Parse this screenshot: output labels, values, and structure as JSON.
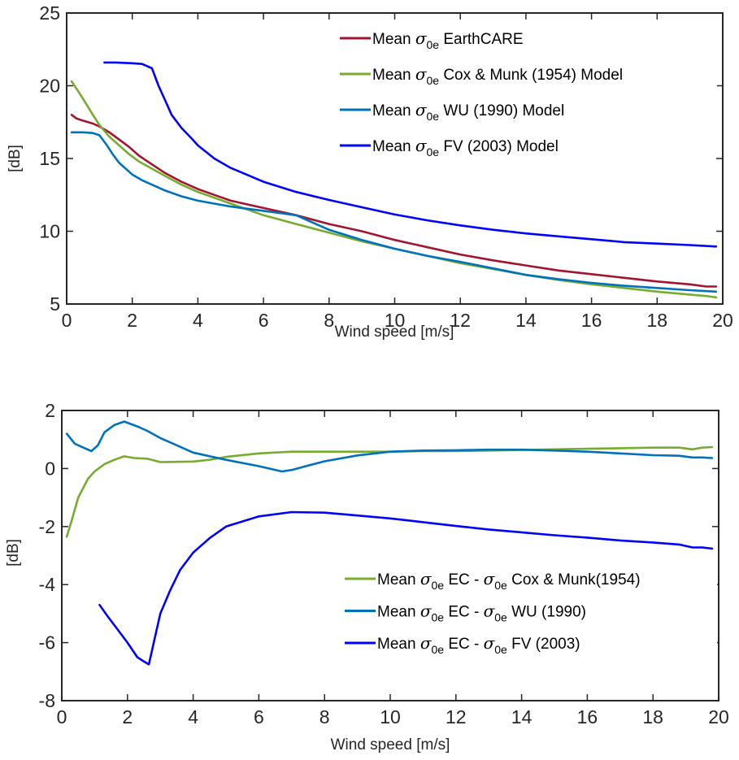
{
  "chart_data": [
    {
      "type": "line",
      "xlabel": "Wind speed [m/s]",
      "ylabel": "[dB]",
      "xlim": [
        0,
        20
      ],
      "ylim": [
        5,
        25
      ],
      "xticks": [
        "0",
        "2",
        "4",
        "6",
        "8",
        "10",
        "12",
        "14",
        "16",
        "18",
        "20"
      ],
      "yticks": [
        "5",
        "10",
        "15",
        "20",
        "25"
      ],
      "grid": false,
      "legend_position": "top-right",
      "series": [
        {
          "name_parts": [
            "Mean",
            "σ",
            "0e",
            "EarthCARE"
          ],
          "color": "#A2142F",
          "points": [
            [
              0.15,
              18.0
            ],
            [
              0.3,
              17.75
            ],
            [
              0.5,
              17.6
            ],
            [
              0.8,
              17.4
            ],
            [
              1.0,
              17.2
            ],
            [
              1.3,
              16.8
            ],
            [
              1.6,
              16.3
            ],
            [
              1.9,
              15.8
            ],
            [
              2.2,
              15.2
            ],
            [
              2.6,
              14.6
            ],
            [
              3.0,
              14.0
            ],
            [
              3.5,
              13.4
            ],
            [
              4.0,
              12.9
            ],
            [
              4.5,
              12.5
            ],
            [
              5.0,
              12.1
            ],
            [
              6.0,
              11.6
            ],
            [
              7.0,
              11.1
            ],
            [
              8.0,
              10.5
            ],
            [
              9.0,
              10.0
            ],
            [
              10.0,
              9.4
            ],
            [
              11.0,
              8.9
            ],
            [
              12.0,
              8.4
            ],
            [
              13.0,
              8.0
            ],
            [
              14.0,
              7.65
            ],
            [
              15.0,
              7.3
            ],
            [
              16.0,
              7.05
            ],
            [
              17.0,
              6.8
            ],
            [
              18.0,
              6.55
            ],
            [
              19.0,
              6.35
            ],
            [
              19.5,
              6.2
            ],
            [
              19.8,
              6.2
            ]
          ]
        },
        {
          "name_parts": [
            "Mean",
            "σ",
            "0e",
            "Cox & Munk (1954) Model"
          ],
          "color": "#77AC30",
          "points": [
            [
              0.15,
              20.3
            ],
            [
              0.3,
              19.8
            ],
            [
              0.5,
              19.1
            ],
            [
              0.8,
              18.0
            ],
            [
              1.0,
              17.3
            ],
            [
              1.3,
              16.5
            ],
            [
              1.6,
              15.9
            ],
            [
              1.9,
              15.3
            ],
            [
              2.2,
              14.8
            ],
            [
              2.6,
              14.3
            ],
            [
              3.0,
              13.8
            ],
            [
              3.5,
              13.2
            ],
            [
              4.0,
              12.7
            ],
            [
              4.5,
              12.3
            ],
            [
              5.0,
              11.9
            ],
            [
              6.0,
              11.1
            ],
            [
              7.0,
              10.5
            ],
            [
              8.0,
              9.9
            ],
            [
              9.0,
              9.3
            ],
            [
              10.0,
              8.8
            ],
            [
              11.0,
              8.3
            ],
            [
              12.0,
              7.8
            ],
            [
              13.0,
              7.4
            ],
            [
              14.0,
              7.0
            ],
            [
              15.0,
              6.65
            ],
            [
              16.0,
              6.35
            ],
            [
              17.0,
              6.1
            ],
            [
              18.0,
              5.85
            ],
            [
              19.0,
              5.65
            ],
            [
              19.5,
              5.55
            ],
            [
              19.8,
              5.45
            ]
          ]
        },
        {
          "name_parts": [
            "Mean",
            "σ",
            "0e",
            "WU (1990) Model"
          ],
          "color": "#0072BD",
          "points": [
            [
              0.15,
              16.8
            ],
            [
              0.5,
              16.8
            ],
            [
              0.8,
              16.75
            ],
            [
              1.0,
              16.6
            ],
            [
              1.2,
              16.0
            ],
            [
              1.4,
              15.3
            ],
            [
              1.6,
              14.7
            ],
            [
              1.8,
              14.3
            ],
            [
              2.0,
              13.9
            ],
            [
              2.3,
              13.5
            ],
            [
              2.6,
              13.2
            ],
            [
              3.0,
              12.8
            ],
            [
              3.5,
              12.4
            ],
            [
              4.0,
              12.1
            ],
            [
              4.5,
              11.9
            ],
            [
              5.0,
              11.7
            ],
            [
              6.0,
              11.4
            ],
            [
              6.5,
              11.25
            ],
            [
              7.0,
              11.1
            ],
            [
              7.5,
              10.6
            ],
            [
              8.0,
              10.1
            ],
            [
              9.0,
              9.4
            ],
            [
              10.0,
              8.8
            ],
            [
              11.0,
              8.3
            ],
            [
              12.0,
              7.9
            ],
            [
              13.0,
              7.45
            ],
            [
              14.0,
              7.0
            ],
            [
              15.0,
              6.7
            ],
            [
              16.0,
              6.45
            ],
            [
              17.0,
              6.25
            ],
            [
              18.0,
              6.1
            ],
            [
              19.0,
              5.95
            ],
            [
              19.8,
              5.85
            ]
          ]
        },
        {
          "name_parts": [
            "Mean",
            "σ",
            "0e",
            "FV (2003) Model"
          ],
          "color": "#0000FF",
          "points": [
            [
              1.15,
              21.6
            ],
            [
              1.5,
              21.6
            ],
            [
              2.0,
              21.55
            ],
            [
              2.3,
              21.5
            ],
            [
              2.6,
              21.2
            ],
            [
              2.8,
              20.0
            ],
            [
              3.0,
              19.0
            ],
            [
              3.2,
              18.0
            ],
            [
              3.5,
              17.1
            ],
            [
              3.8,
              16.4
            ],
            [
              4.0,
              15.9
            ],
            [
              4.5,
              15.0
            ],
            [
              5.0,
              14.35
            ],
            [
              6.0,
              13.4
            ],
            [
              7.0,
              12.7
            ],
            [
              8.0,
              12.15
            ],
            [
              9.0,
              11.65
            ],
            [
              10.0,
              11.15
            ],
            [
              11.0,
              10.75
            ],
            [
              12.0,
              10.4
            ],
            [
              13.0,
              10.1
            ],
            [
              14.0,
              9.85
            ],
            [
              15.0,
              9.65
            ],
            [
              16.0,
              9.45
            ],
            [
              17.0,
              9.25
            ],
            [
              18.0,
              9.15
            ],
            [
              19.0,
              9.05
            ],
            [
              19.8,
              8.95
            ]
          ]
        }
      ]
    },
    {
      "type": "line",
      "xlabel": "Wind speed [m/s]",
      "ylabel": "[dB]",
      "xlim": [
        0,
        20
      ],
      "ylim": [
        -8,
        2
      ],
      "xticks": [
        "0",
        "2",
        "4",
        "6",
        "8",
        "10",
        "12",
        "14",
        "16",
        "18",
        "20"
      ],
      "yticks": [
        "-8",
        "-6",
        "-4",
        "-2",
        "0",
        "2"
      ],
      "grid": false,
      "legend_position": "bottom-right",
      "series": [
        {
          "name_parts": [
            "Mean",
            "σ",
            "0e",
            "EC -",
            "σ",
            "0e",
            "Cox & Munk(1954)"
          ],
          "color": "#77AC30",
          "points": [
            [
              0.15,
              -2.35
            ],
            [
              0.3,
              -1.8
            ],
            [
              0.5,
              -1.0
            ],
            [
              0.8,
              -0.35
            ],
            [
              1.0,
              -0.1
            ],
            [
              1.3,
              0.15
            ],
            [
              1.6,
              0.3
            ],
            [
              1.9,
              0.42
            ],
            [
              2.2,
              0.36
            ],
            [
              2.6,
              0.34
            ],
            [
              3.0,
              0.22
            ],
            [
              3.5,
              0.23
            ],
            [
              4.0,
              0.24
            ],
            [
              4.5,
              0.3
            ],
            [
              5.0,
              0.4
            ],
            [
              6.0,
              0.52
            ],
            [
              7.0,
              0.58
            ],
            [
              8.0,
              0.58
            ],
            [
              9.0,
              0.58
            ],
            [
              10.0,
              0.58
            ],
            [
              11.0,
              0.6
            ],
            [
              12.0,
              0.6
            ],
            [
              13.0,
              0.62
            ],
            [
              14.0,
              0.64
            ],
            [
              15.0,
              0.66
            ],
            [
              16.0,
              0.68
            ],
            [
              17.0,
              0.7
            ],
            [
              18.0,
              0.72
            ],
            [
              18.8,
              0.72
            ],
            [
              19.2,
              0.66
            ],
            [
              19.5,
              0.72
            ],
            [
              19.8,
              0.74
            ]
          ]
        },
        {
          "name_parts": [
            "Mean",
            "σ",
            "0e",
            "EC -",
            "σ",
            "0e",
            "WU (1990)"
          ],
          "color": "#0072BD",
          "points": [
            [
              0.15,
              1.2
            ],
            [
              0.4,
              0.85
            ],
            [
              0.7,
              0.7
            ],
            [
              0.9,
              0.6
            ],
            [
              1.1,
              0.8
            ],
            [
              1.3,
              1.25
            ],
            [
              1.6,
              1.5
            ],
            [
              1.9,
              1.62
            ],
            [
              2.3,
              1.45
            ],
            [
              2.6,
              1.3
            ],
            [
              3.0,
              1.05
            ],
            [
              3.5,
              0.8
            ],
            [
              4.0,
              0.55
            ],
            [
              5.0,
              0.3
            ],
            [
              6.0,
              0.08
            ],
            [
              6.7,
              -0.1
            ],
            [
              7.0,
              -0.05
            ],
            [
              7.5,
              0.1
            ],
            [
              8.0,
              0.25
            ],
            [
              9.0,
              0.45
            ],
            [
              10.0,
              0.58
            ],
            [
              11.0,
              0.62
            ],
            [
              12.0,
              0.63
            ],
            [
              13.0,
              0.65
            ],
            [
              14.0,
              0.65
            ],
            [
              15.0,
              0.62
            ],
            [
              16.0,
              0.58
            ],
            [
              17.0,
              0.52
            ],
            [
              18.0,
              0.46
            ],
            [
              18.8,
              0.44
            ],
            [
              19.2,
              0.38
            ],
            [
              19.5,
              0.38
            ],
            [
              19.8,
              0.36
            ]
          ]
        },
        {
          "name_parts": [
            "Mean",
            "σ",
            "0e",
            "EC -",
            "σ",
            "0e",
            "FV (2003)"
          ],
          "color": "#0000FF",
          "points": [
            [
              1.15,
              -4.7
            ],
            [
              1.4,
              -5.1
            ],
            [
              1.7,
              -5.55
            ],
            [
              2.0,
              -6.0
            ],
            [
              2.3,
              -6.5
            ],
            [
              2.5,
              -6.65
            ],
            [
              2.65,
              -6.75
            ],
            [
              2.8,
              -6.0
            ],
            [
              3.0,
              -5.0
            ],
            [
              3.3,
              -4.2
            ],
            [
              3.6,
              -3.5
            ],
            [
              4.0,
              -2.9
            ],
            [
              4.5,
              -2.4
            ],
            [
              5.0,
              -2.0
            ],
            [
              6.0,
              -1.65
            ],
            [
              7.0,
              -1.5
            ],
            [
              8.0,
              -1.52
            ],
            [
              9.0,
              -1.62
            ],
            [
              10.0,
              -1.72
            ],
            [
              11.0,
              -1.85
            ],
            [
              12.0,
              -1.98
            ],
            [
              13.0,
              -2.1
            ],
            [
              14.0,
              -2.2
            ],
            [
              15.0,
              -2.3
            ],
            [
              16.0,
              -2.38
            ],
            [
              17.0,
              -2.48
            ],
            [
              18.0,
              -2.55
            ],
            [
              18.8,
              -2.62
            ],
            [
              19.2,
              -2.72
            ],
            [
              19.5,
              -2.72
            ],
            [
              19.8,
              -2.76
            ]
          ]
        }
      ]
    }
  ]
}
